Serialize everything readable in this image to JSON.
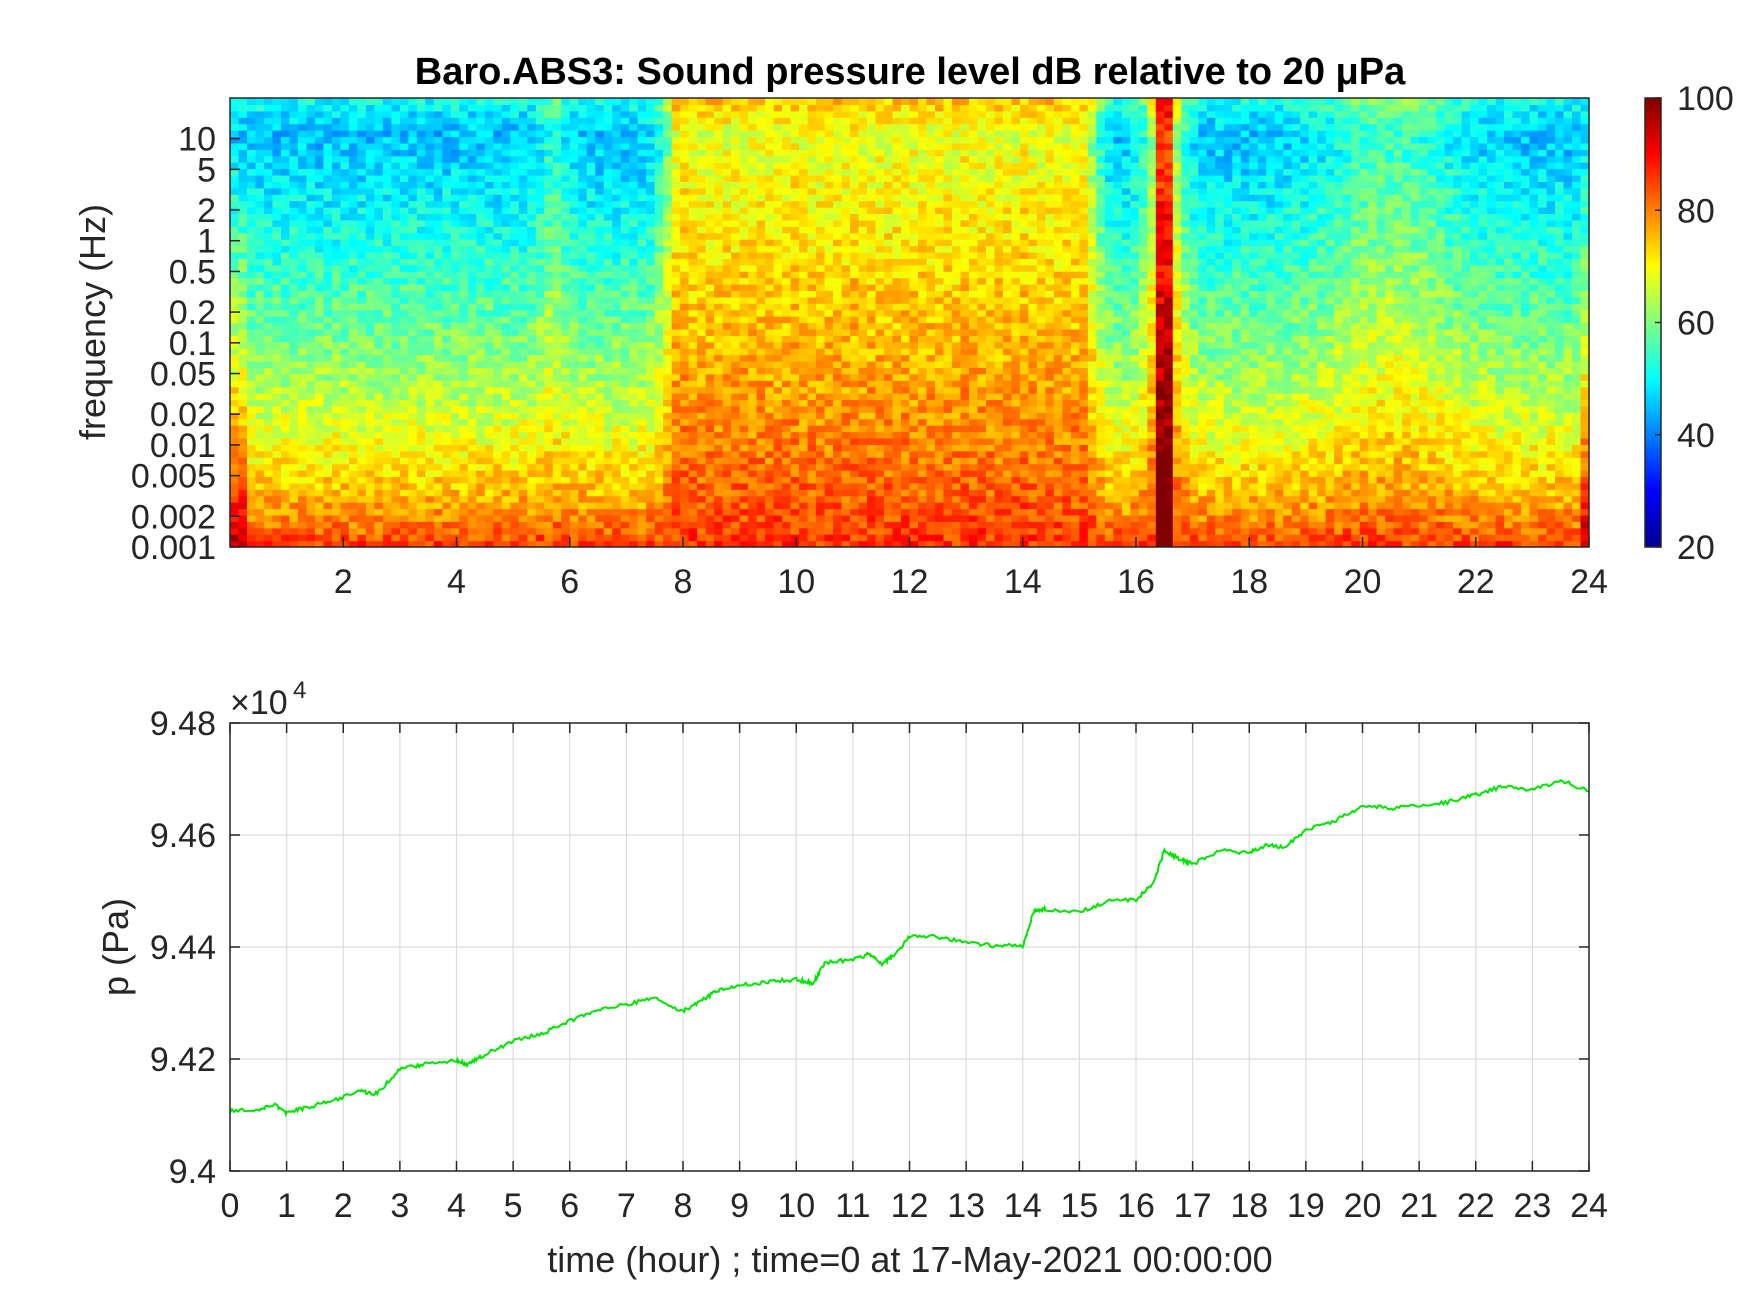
{
  "chart_data": [
    {
      "type": "heatmap",
      "title": "Baro.ABS3: Sound pressure level dB relative to 20 μPa",
      "ylabel": "frequency (Hz)",
      "xlabel": "",
      "xlim": [
        0,
        24
      ],
      "x_ticks": [
        "2",
        "4",
        "6",
        "8",
        "10",
        "12",
        "14",
        "16",
        "18",
        "20",
        "22",
        "24"
      ],
      "y_scale": "log",
      "ylim": [
        0.001,
        25
      ],
      "y_ticks": [
        "10",
        "5",
        "2",
        "1",
        "0.5",
        "0.2",
        "0.1",
        "0.05",
        "0.02",
        "0.01",
        "0.005",
        "0.002",
        "0.001"
      ],
      "colormap": "jet",
      "clim": [
        20,
        100
      ],
      "colorbar_ticks": [
        "100",
        "80",
        "60",
        "40",
        "20"
      ],
      "high_activity_hours": [
        8,
        9,
        10,
        11,
        12,
        13,
        14,
        15,
        16.5
      ],
      "peak_event_hour": 16.5
    },
    {
      "type": "line",
      "xlabel": "time (hour) ; time=0 at 17-May-2021 00:00:00",
      "ylabel": "p (Pa)",
      "exponent_label": "×10",
      "exponent_power": "4",
      "xlim": [
        0,
        24
      ],
      "ylim": [
        9.4,
        9.48
      ],
      "x_ticks": [
        "0",
        "1",
        "2",
        "3",
        "4",
        "5",
        "6",
        "7",
        "8",
        "9",
        "10",
        "11",
        "12",
        "13",
        "14",
        "15",
        "16",
        "17",
        "18",
        "19",
        "20",
        "21",
        "22",
        "23",
        "24"
      ],
      "y_ticks": [
        "9.48",
        "9.46",
        "9.44",
        "9.42",
        "9.4"
      ],
      "grid": true,
      "line_color": "#00e600",
      "series": [
        {
          "x": [
            0,
            0.5,
            0.8,
            1.0,
            1.3,
            1.8,
            2.3,
            2.6,
            3.0,
            3.4,
            4.0,
            4.2,
            4.5,
            5.0,
            5.5,
            6.0,
            6.5,
            7.0,
            7.5,
            8.0,
            8.3,
            8.6,
            9.0,
            9.5,
            10.0,
            10.3,
            10.5,
            11.0,
            11.3,
            11.5,
            11.7,
            12.0,
            12.5,
            13.0,
            13.5,
            14.0,
            14.2,
            14.4,
            15.0,
            15.5,
            16.0,
            16.3,
            16.5,
            16.8,
            17.0,
            17.5,
            18.0,
            18.3,
            18.6,
            19.0,
            19.5,
            20.0,
            20.5,
            21.0,
            21.5,
            22.0,
            22.5,
            23.0,
            23.5,
            24.0
          ],
          "y": [
            9.4108,
            9.411,
            9.4118,
            9.4104,
            9.4112,
            9.4125,
            9.4142,
            9.4138,
            9.4182,
            9.419,
            9.4198,
            9.419,
            9.4208,
            9.4232,
            9.4245,
            9.4268,
            9.4288,
            9.4298,
            9.4308,
            9.4285,
            9.4302,
            9.4322,
            9.4332,
            9.4338,
            9.4342,
            9.4335,
            9.4372,
            9.4378,
            9.4388,
            9.437,
            9.4382,
            9.4418,
            9.4418,
            9.4408,
            9.4402,
            9.4402,
            9.4465,
            9.4468,
            9.4462,
            9.4482,
            9.4485,
            9.4512,
            9.4572,
            9.4555,
            9.4548,
            9.4572,
            9.4568,
            9.4582,
            9.4578,
            9.4608,
            9.4625,
            9.4652,
            9.4648,
            9.4652,
            9.4658,
            9.4672,
            9.4688,
            9.468,
            9.4698,
            9.4678
          ]
        }
      ]
    }
  ]
}
